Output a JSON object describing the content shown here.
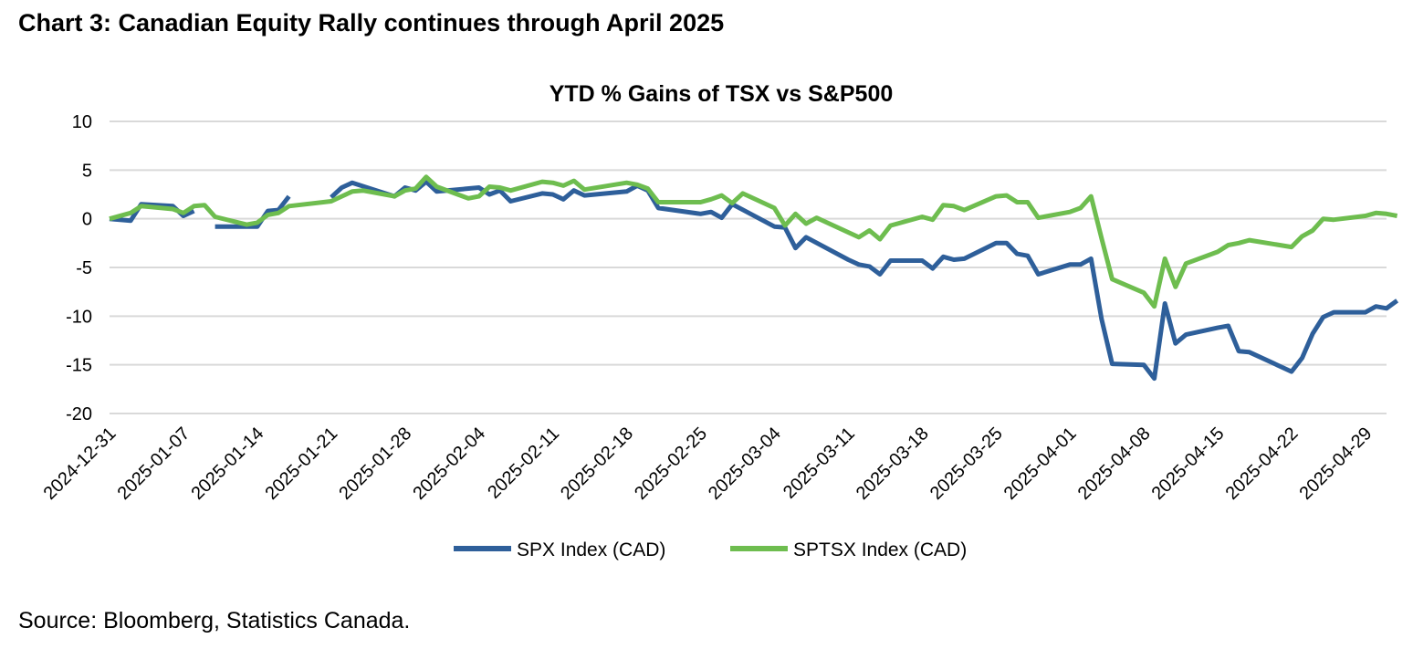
{
  "heading": "Chart 3: Canadian Equity Rally continues through April 2025",
  "source": "Source: Bloomberg, Statistics Canada.",
  "chart_data": {
    "type": "line",
    "title": "YTD % Gains of TSX vs S&P500",
    "xlabel": "",
    "ylabel": "",
    "ylim": [
      -20,
      10
    ],
    "yticks": [
      10,
      5,
      0,
      -5,
      -10,
      -15,
      -20
    ],
    "grid": true,
    "legend": "bottom",
    "x_tick_labels": [
      "2024-12-31",
      "2025-01-07",
      "2025-01-14",
      "2025-01-21",
      "2025-01-28",
      "2025-02-04",
      "2025-02-11",
      "2025-02-18",
      "2025-02-25",
      "2025-03-04",
      "2025-03-11",
      "2025-03-18",
      "2025-03-25",
      "2025-04-01",
      "2025-04-08",
      "2025-04-15",
      "2025-04-22",
      "2025-04-29"
    ],
    "x_start": "2024-12-31",
    "x_end": "2025-05-01",
    "series": [
      {
        "name": "SPX Index (CAD)",
        "color": "#2e5f9a",
        "points": [
          {
            "day": 0,
            "value": 0.0
          },
          {
            "day": 2,
            "value": -0.2
          },
          {
            "day": 3,
            "value": 1.5
          },
          {
            "day": 6,
            "value": 1.3
          },
          {
            "day": 7,
            "value": 0.3
          },
          {
            "day": 8,
            "value": 0.8
          },
          {
            "day": null,
            "value": null
          },
          {
            "day": 10,
            "value": -0.8
          },
          {
            "day": 14,
            "value": -0.8
          },
          {
            "day": 15,
            "value": 0.8
          },
          {
            "day": 16,
            "value": 0.9
          },
          {
            "day": 17,
            "value": 2.3
          },
          {
            "day": null,
            "value": null
          },
          {
            "day": 21,
            "value": 2.2
          },
          {
            "day": 22,
            "value": 3.2
          },
          {
            "day": 23,
            "value": 3.7
          },
          {
            "day": 27,
            "value": 2.3
          },
          {
            "day": 28,
            "value": 3.2
          },
          {
            "day": 29,
            "value": 2.9
          },
          {
            "day": 30,
            "value": 3.8
          },
          {
            "day": 31,
            "value": 2.8
          },
          {
            "day": 35,
            "value": 3.2
          },
          {
            "day": 36,
            "value": 2.5
          },
          {
            "day": 37,
            "value": 2.9
          },
          {
            "day": 38,
            "value": 1.8
          },
          {
            "day": 41,
            "value": 2.6
          },
          {
            "day": 42,
            "value": 2.5
          },
          {
            "day": 43,
            "value": 2.0
          },
          {
            "day": 44,
            "value": 2.9
          },
          {
            "day": 45,
            "value": 2.4
          },
          {
            "day": 49,
            "value": 2.8
          },
          {
            "day": 50,
            "value": 3.4
          },
          {
            "day": 51,
            "value": 2.9
          },
          {
            "day": 52,
            "value": 1.1
          },
          {
            "day": 56,
            "value": 0.5
          },
          {
            "day": 57,
            "value": 0.7
          },
          {
            "day": 58,
            "value": 0.1
          },
          {
            "day": 59,
            "value": 1.5
          },
          {
            "day": 63,
            "value": -0.8
          },
          {
            "day": 64,
            "value": -0.9
          },
          {
            "day": 65,
            "value": -3.0
          },
          {
            "day": 66,
            "value": -1.9
          },
          {
            "day": 70,
            "value": -4.2
          },
          {
            "day": 71,
            "value": -4.7
          },
          {
            "day": 72,
            "value": -4.9
          },
          {
            "day": 73,
            "value": -5.7
          },
          {
            "day": 74,
            "value": -4.3
          },
          {
            "day": 77,
            "value": -4.3
          },
          {
            "day": 78,
            "value": -5.1
          },
          {
            "day": 79,
            "value": -3.9
          },
          {
            "day": 80,
            "value": -4.2
          },
          {
            "day": 81,
            "value": -4.1
          },
          {
            "day": 84,
            "value": -2.5
          },
          {
            "day": 85,
            "value": -2.5
          },
          {
            "day": 86,
            "value": -3.6
          },
          {
            "day": 87,
            "value": -3.8
          },
          {
            "day": 88,
            "value": -5.7
          },
          {
            "day": 91,
            "value": -4.7
          },
          {
            "day": 92,
            "value": -4.7
          },
          {
            "day": 93,
            "value": -4.1
          },
          {
            "day": 94,
            "value": -10.3
          },
          {
            "day": 95,
            "value": -14.9
          },
          {
            "day": 98,
            "value": -15.0
          },
          {
            "day": 99,
            "value": -16.4
          },
          {
            "day": 100,
            "value": -8.7
          },
          {
            "day": 101,
            "value": -12.8
          },
          {
            "day": 102,
            "value": -11.9
          },
          {
            "day": 105,
            "value": -11.2
          },
          {
            "day": 106,
            "value": -11.0
          },
          {
            "day": 107,
            "value": -13.6
          },
          {
            "day": 108,
            "value": -13.7
          },
          {
            "day": 112,
            "value": -15.7
          },
          {
            "day": 113,
            "value": -14.3
          },
          {
            "day": 114,
            "value": -11.8
          },
          {
            "day": 115,
            "value": -10.1
          },
          {
            "day": 116,
            "value": -9.6
          },
          {
            "day": 119,
            "value": -9.6
          },
          {
            "day": 120,
            "value": -9.0
          },
          {
            "day": 121,
            "value": -9.2
          },
          {
            "day": 122,
            "value": -8.4
          }
        ]
      },
      {
        "name": "SPTSX Index (CAD)",
        "color": "#6ebd4f",
        "points": [
          {
            "day": 0,
            "value": 0.0
          },
          {
            "day": 2,
            "value": 0.6
          },
          {
            "day": 3,
            "value": 1.3
          },
          {
            "day": 6,
            "value": 1.0
          },
          {
            "day": 7,
            "value": 0.6
          },
          {
            "day": 8,
            "value": 1.3
          },
          {
            "day": 9,
            "value": 1.4
          },
          {
            "day": 10,
            "value": 0.2
          },
          {
            "day": 13,
            "value": -0.6
          },
          {
            "day": 14,
            "value": -0.4
          },
          {
            "day": 15,
            "value": 0.4
          },
          {
            "day": 16,
            "value": 0.6
          },
          {
            "day": 17,
            "value": 1.3
          },
          {
            "day": 21,
            "value": 1.8
          },
          {
            "day": 22,
            "value": 2.3
          },
          {
            "day": 23,
            "value": 2.8
          },
          {
            "day": 24,
            "value": 2.9
          },
          {
            "day": 27,
            "value": 2.3
          },
          {
            "day": 28,
            "value": 2.9
          },
          {
            "day": 29,
            "value": 3.1
          },
          {
            "day": 30,
            "value": 4.3
          },
          {
            "day": 31,
            "value": 3.3
          },
          {
            "day": 34,
            "value": 2.1
          },
          {
            "day": 35,
            "value": 2.3
          },
          {
            "day": 36,
            "value": 3.3
          },
          {
            "day": 37,
            "value": 3.2
          },
          {
            "day": 38,
            "value": 2.9
          },
          {
            "day": 41,
            "value": 3.8
          },
          {
            "day": 42,
            "value": 3.7
          },
          {
            "day": 43,
            "value": 3.4
          },
          {
            "day": 44,
            "value": 3.9
          },
          {
            "day": 45,
            "value": 3.0
          },
          {
            "day": 49,
            "value": 3.7
          },
          {
            "day": 50,
            "value": 3.5
          },
          {
            "day": 51,
            "value": 3.1
          },
          {
            "day": 52,
            "value": 1.7
          },
          {
            "day": 56,
            "value": 1.7
          },
          {
            "day": 57,
            "value": 2.0
          },
          {
            "day": 58,
            "value": 2.4
          },
          {
            "day": 59,
            "value": 1.6
          },
          {
            "day": 60,
            "value": 2.6
          },
          {
            "day": 63,
            "value": 1.1
          },
          {
            "day": 64,
            "value": -0.7
          },
          {
            "day": 65,
            "value": 0.5
          },
          {
            "day": 66,
            "value": -0.5
          },
          {
            "day": 67,
            "value": 0.1
          },
          {
            "day": 71,
            "value": -1.9
          },
          {
            "day": 72,
            "value": -1.2
          },
          {
            "day": 73,
            "value": -2.1
          },
          {
            "day": 74,
            "value": -0.7
          },
          {
            "day": 77,
            "value": 0.2
          },
          {
            "day": 78,
            "value": -0.1
          },
          {
            "day": 79,
            "value": 1.4
          },
          {
            "day": 80,
            "value": 1.3
          },
          {
            "day": 81,
            "value": 0.9
          },
          {
            "day": 84,
            "value": 2.3
          },
          {
            "day": 85,
            "value": 2.4
          },
          {
            "day": 86,
            "value": 1.7
          },
          {
            "day": 87,
            "value": 1.7
          },
          {
            "day": 88,
            "value": 0.1
          },
          {
            "day": 91,
            "value": 0.7
          },
          {
            "day": 92,
            "value": 1.1
          },
          {
            "day": 93,
            "value": 2.3
          },
          {
            "day": 94,
            "value": -2.0
          },
          {
            "day": 95,
            "value": -6.2
          },
          {
            "day": 98,
            "value": -7.6
          },
          {
            "day": 99,
            "value": -9.0
          },
          {
            "day": 100,
            "value": -4.1
          },
          {
            "day": 101,
            "value": -7.0
          },
          {
            "day": 102,
            "value": -4.6
          },
          {
            "day": 105,
            "value": -3.4
          },
          {
            "day": 106,
            "value": -2.7
          },
          {
            "day": 107,
            "value": -2.5
          },
          {
            "day": 108,
            "value": -2.2
          },
          {
            "day": 112,
            "value": -2.9
          },
          {
            "day": 113,
            "value": -1.8
          },
          {
            "day": 114,
            "value": -1.2
          },
          {
            "day": 115,
            "value": 0.0
          },
          {
            "day": 116,
            "value": -0.1
          },
          {
            "day": 119,
            "value": 0.3
          },
          {
            "day": 120,
            "value": 0.6
          },
          {
            "day": 121,
            "value": 0.5
          },
          {
            "day": 122,
            "value": 0.3
          }
        ]
      }
    ]
  },
  "colors": {
    "spx": "#2e5f9a",
    "tsx": "#6ebd4f",
    "grid": "#d9d9d9",
    "axis": "#bfbfbf"
  }
}
